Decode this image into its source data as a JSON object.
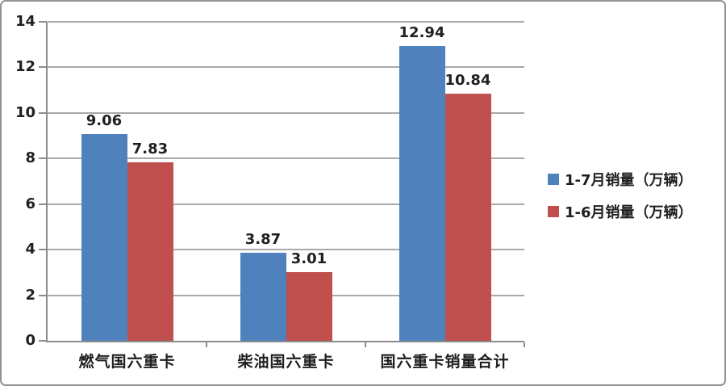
{
  "chart_data": {
    "type": "bar",
    "title": "",
    "categories": [
      "燃气国六重卡",
      "柴油国六重卡",
      "国六重卡销量合计"
    ],
    "series": [
      {
        "name": "1-7月销量（万辆）",
        "color": "#4F81BD",
        "values": [
          9.06,
          3.87,
          12.94
        ],
        "labels": [
          "9.06",
          "3.87",
          "12.94"
        ]
      },
      {
        "name": "1-6月销量（万辆）",
        "color": "#C0504D",
        "values": [
          7.83,
          3.01,
          10.84
        ],
        "labels": [
          "7.83",
          "3.01",
          "10.84"
        ]
      }
    ],
    "ylim": [
      0,
      14
    ],
    "ytick_step": 2,
    "ytick_labels": [
      "0",
      "2",
      "4",
      "6",
      "8",
      "10",
      "12",
      "14"
    ],
    "grid": "horizontal-on",
    "legend_position": "right",
    "colors": {
      "grid": "#A9A9A9",
      "axis": "#8C8C8C",
      "text": "#1F1F1F",
      "frame_border": "#919191",
      "background": "#FFFFFF"
    }
  }
}
